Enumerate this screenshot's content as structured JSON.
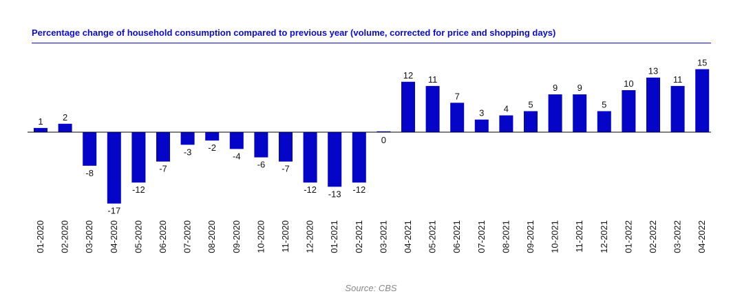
{
  "chart_data": {
    "type": "bar",
    "title": "Percentage change of household consumption compared to previous year (volume, corrected for price and shopping days)",
    "source": "Source: CBS",
    "categories": [
      "01-2020",
      "02-2020",
      "03-2020",
      "04-2020",
      "05-2020",
      "06-2020",
      "07-2020",
      "08-2020",
      "09-2020",
      "10-2020",
      "11-2020",
      "12-2020",
      "01-2021",
      "02-2021",
      "03-2021",
      "04-2021",
      "05-2021",
      "06-2021",
      "07-2021",
      "08-2021",
      "09-2021",
      "10-2021",
      "11-2021",
      "12-2021",
      "01-2022",
      "02-2022",
      "03-2022",
      "04-2022"
    ],
    "values": [
      1,
      2,
      -8,
      -17,
      -12,
      -7,
      -3,
      -2,
      -4,
      -6,
      -7,
      -12,
      -13,
      -12,
      0,
      12,
      11,
      7,
      3,
      4,
      5,
      9,
      9,
      5,
      10,
      13,
      11,
      15
    ],
    "bar_color": "#0505c8",
    "axis_color": "#000000",
    "grid": false,
    "legend": "none",
    "ylim": [
      -17,
      15
    ]
  }
}
